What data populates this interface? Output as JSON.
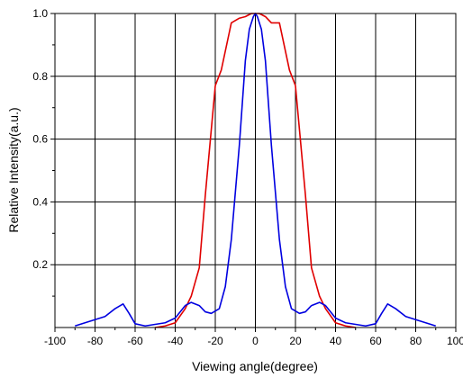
{
  "chart_data": {
    "type": "line",
    "xlabel": "Viewing angle(degree)",
    "ylabel": "Relative Intensity(a.u.)",
    "xlim": [
      -100,
      100
    ],
    "ylim": [
      0,
      1.0
    ],
    "x_ticks": [
      -100,
      -80,
      -60,
      -40,
      -20,
      0,
      20,
      40,
      60,
      80,
      100
    ],
    "x_tick_labels": [
      "-100",
      "-80",
      "-60",
      "-40",
      "-20",
      "0",
      "20",
      "40",
      "60",
      "80",
      "100"
    ],
    "y_ticks": [
      0.2,
      0.4,
      0.6,
      0.8,
      1.0
    ],
    "y_tick_labels": [
      "0.2",
      "0.4",
      "0.6",
      "0.8",
      "1.0"
    ],
    "grid": true,
    "legend": "none",
    "series": [
      {
        "color": "#e00000",
        "x": [
          -50,
          -45,
          -40,
          -35,
          -32,
          -28,
          -25,
          -22,
          -20,
          -17,
          -12,
          -8,
          -5,
          -2,
          0,
          2,
          5,
          8,
          12,
          17,
          20,
          22,
          25,
          28,
          32,
          35,
          40,
          45,
          50
        ],
        "y": [
          0.0,
          0.005,
          0.015,
          0.06,
          0.1,
          0.19,
          0.42,
          0.63,
          0.77,
          0.82,
          0.97,
          0.985,
          0.99,
          1.0,
          1.0,
          1.0,
          0.99,
          0.97,
          0.97,
          0.82,
          0.77,
          0.63,
          0.42,
          0.19,
          0.1,
          0.06,
          0.015,
          0.005,
          0.0
        ]
      },
      {
        "color": "#0000e0",
        "x": [
          -90,
          -85,
          -80,
          -75,
          -70,
          -66,
          -63,
          -60,
          -55,
          -50,
          -45,
          -40,
          -35,
          -32,
          -28,
          -25,
          -22,
          -18,
          -15,
          -12,
          -8,
          -5,
          -3,
          -1,
          0,
          1,
          3,
          5,
          8,
          12,
          15,
          18,
          22,
          25,
          28,
          32,
          35,
          40,
          45,
          50,
          55,
          60,
          63,
          66,
          70,
          75,
          80,
          85,
          90
        ],
        "y": [
          0.005,
          0.015,
          0.025,
          0.035,
          0.06,
          0.075,
          0.045,
          0.012,
          0.005,
          0.01,
          0.015,
          0.03,
          0.07,
          0.08,
          0.07,
          0.05,
          0.045,
          0.06,
          0.13,
          0.28,
          0.58,
          0.85,
          0.95,
          0.99,
          1.0,
          0.99,
          0.95,
          0.85,
          0.58,
          0.28,
          0.13,
          0.06,
          0.045,
          0.05,
          0.07,
          0.08,
          0.07,
          0.03,
          0.015,
          0.01,
          0.005,
          0.012,
          0.045,
          0.075,
          0.06,
          0.035,
          0.025,
          0.015,
          0.005
        ]
      }
    ]
  }
}
